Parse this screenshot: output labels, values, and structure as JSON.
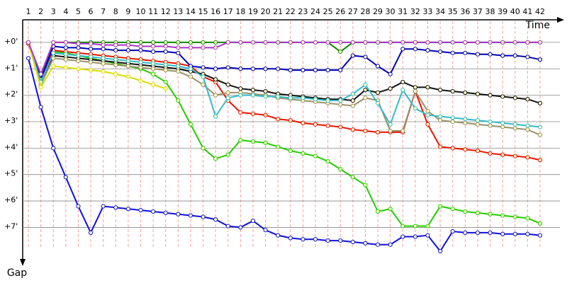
{
  "chart_data": {
    "type": "line",
    "x_label": "Time",
    "y_label": "Gap",
    "categories": [
      "1",
      "2",
      "3",
      "4",
      "5",
      "6",
      "7",
      "8",
      "9",
      "10",
      "11",
      "12",
      "13",
      "14",
      "15",
      "16",
      "17",
      "18",
      "19",
      "20",
      "21",
      "22",
      "23",
      "24",
      "25",
      "26",
      "27",
      "28",
      "29",
      "30",
      "31",
      "32",
      "33",
      "34",
      "35",
      "36",
      "37",
      "38",
      "39",
      "40",
      "41",
      "42"
    ],
    "ylim": [
      -0.8,
      8.3
    ],
    "y_inverted": true,
    "yticks": [
      {
        "value": 0,
        "label": "+0'"
      },
      {
        "value": 1,
        "label": "+1'"
      },
      {
        "value": 2,
        "label": "+2'"
      },
      {
        "value": 3,
        "label": "+3'"
      },
      {
        "value": 4,
        "label": "+4'"
      },
      {
        "value": 5,
        "label": "+5'"
      },
      {
        "value": 6,
        "label": "+6'"
      },
      {
        "value": 7,
        "label": "+7'"
      }
    ],
    "grid": true,
    "series": [
      {
        "color": "#1010e0",
        "values": [
          0.6,
          2.45,
          4.0,
          5.1,
          6.2,
          7.2,
          6.2,
          6.25,
          6.3,
          6.35,
          6.4,
          6.45,
          6.5,
          6.55,
          6.6,
          6.7,
          6.95,
          7.0,
          6.75,
          7.1,
          7.3,
          7.4,
          7.45,
          7.45,
          7.5,
          7.5,
          7.55,
          7.6,
          7.65,
          7.65,
          7.35,
          7.35,
          7.3,
          7.9,
          7.15,
          7.2,
          7.2,
          7.2,
          7.25,
          7.25,
          7.25,
          7.3
        ]
      },
      {
        "color": "#22cc00",
        "values": [
          0,
          1.4,
          0.35,
          0.4,
          0.5,
          0.6,
          0.7,
          0.8,
          0.9,
          1.0,
          1.2,
          1.5,
          2.2,
          3.1,
          4.0,
          4.4,
          4.25,
          3.7,
          3.75,
          3.8,
          3.95,
          4.1,
          4.2,
          4.3,
          4.5,
          4.8,
          5.1,
          5.4,
          6.4,
          6.3,
          6.95,
          6.95,
          6.95,
          6.2,
          6.3,
          6.4,
          6.45,
          6.5,
          6.55,
          6.6,
          6.65,
          6.85
        ]
      },
      {
        "color": "#ee1100",
        "values": [
          0.05,
          1.5,
          0.3,
          0.35,
          0.4,
          0.45,
          0.5,
          0.55,
          0.6,
          0.65,
          0.7,
          0.75,
          0.8,
          0.9,
          1.3,
          1.5,
          2.2,
          2.65,
          2.7,
          2.75,
          2.9,
          2.95,
          3.05,
          3.1,
          3.15,
          3.2,
          3.3,
          3.35,
          3.4,
          3.4,
          3.4,
          1.85,
          3.1,
          3.95,
          4.0,
          4.05,
          4.1,
          4.2,
          4.25,
          4.3,
          4.35,
          4.45
        ]
      },
      {
        "color": "#118800",
        "values": [
          0,
          1.3,
          0,
          0,
          0,
          0,
          0,
          0,
          0,
          0,
          0,
          0,
          0,
          0,
          0,
          0,
          0,
          0,
          0,
          0,
          0,
          0,
          0,
          0,
          0,
          0.35,
          0,
          0,
          0,
          0,
          0,
          0,
          0,
          0,
          0,
          0,
          0,
          0,
          0,
          0,
          0,
          0
        ]
      },
      {
        "color": "#0000bb",
        "values": [
          0,
          1.4,
          0.15,
          0.2,
          0.2,
          0.25,
          0.25,
          0.3,
          0.3,
          0.3,
          0.35,
          0.35,
          0.4,
          0.9,
          0.95,
          1.0,
          0.95,
          1.0,
          1.0,
          1.0,
          1.0,
          1.05,
          1.05,
          1.05,
          1.05,
          1.05,
          0.5,
          0.55,
          0.9,
          1.2,
          0.25,
          0.25,
          0.3,
          0.35,
          0.4,
          0.4,
          0.45,
          0.45,
          0.5,
          0.5,
          0.55,
          0.65
        ]
      },
      {
        "color": "#111111",
        "values": [
          0,
          1.5,
          0.5,
          0.55,
          0.6,
          0.65,
          0.7,
          0.75,
          0.8,
          0.85,
          0.9,
          0.95,
          1.0,
          1.1,
          1.2,
          1.4,
          1.6,
          1.75,
          1.8,
          1.85,
          1.95,
          2.0,
          2.05,
          2.1,
          2.15,
          2.15,
          2.2,
          1.8,
          1.9,
          1.75,
          1.5,
          1.7,
          1.7,
          1.8,
          1.85,
          1.9,
          1.95,
          2.0,
          2.05,
          2.1,
          2.15,
          2.3
        ]
      },
      {
        "color": "#99906a",
        "values": [
          0,
          1.6,
          0.6,
          0.65,
          0.7,
          0.75,
          0.8,
          0.85,
          0.9,
          0.95,
          1.0,
          1.05,
          1.1,
          1.3,
          1.6,
          2.0,
          1.9,
          1.9,
          1.95,
          2.0,
          2.1,
          2.15,
          2.2,
          2.25,
          2.3,
          2.35,
          2.4,
          2.1,
          2.2,
          3.35,
          3.35,
          1.85,
          2.6,
          2.95,
          3.0,
          3.05,
          3.1,
          3.15,
          3.2,
          3.25,
          3.3,
          3.5
        ]
      },
      {
        "color": "#33bbcc",
        "values": [
          0,
          1.5,
          0.4,
          0.45,
          0.5,
          0.55,
          0.6,
          0.65,
          0.7,
          0.75,
          0.8,
          0.85,
          0.9,
          1.0,
          1.3,
          2.8,
          2.1,
          2.0,
          2.0,
          2.05,
          2.05,
          2.1,
          2.1,
          2.15,
          2.2,
          2.2,
          1.95,
          1.6,
          2.3,
          3.1,
          1.8,
          2.5,
          2.75,
          2.8,
          2.85,
          2.9,
          2.95,
          3.0,
          3.05,
          3.1,
          3.15,
          3.2
        ]
      },
      {
        "color": "#dddd00",
        "values": [
          0,
          1.7,
          0.9,
          0.95,
          1.0,
          1.05,
          1.1,
          1.2,
          1.3,
          1.45,
          1.6,
          1.75,
          null,
          null,
          null,
          null,
          null,
          null,
          null,
          null,
          null,
          null,
          null,
          null,
          null,
          null,
          null,
          null,
          null,
          null,
          null,
          null,
          null,
          null,
          null,
          null,
          null,
          null,
          null,
          null,
          null,
          null
        ]
      },
      {
        "color": "#aa33cc",
        "values": [
          0,
          1.2,
          0,
          0,
          0.05,
          0.05,
          0.1,
          0.1,
          0.1,
          0.15,
          0.15,
          0.15,
          0.2,
          0.2,
          0.2,
          0.2,
          0,
          0,
          0,
          0,
          0,
          0,
          0,
          0,
          0,
          0,
          0,
          0,
          0,
          0,
          0,
          0,
          0,
          0,
          0,
          0,
          0,
          0,
          0,
          0,
          0,
          0
        ]
      }
    ]
  }
}
